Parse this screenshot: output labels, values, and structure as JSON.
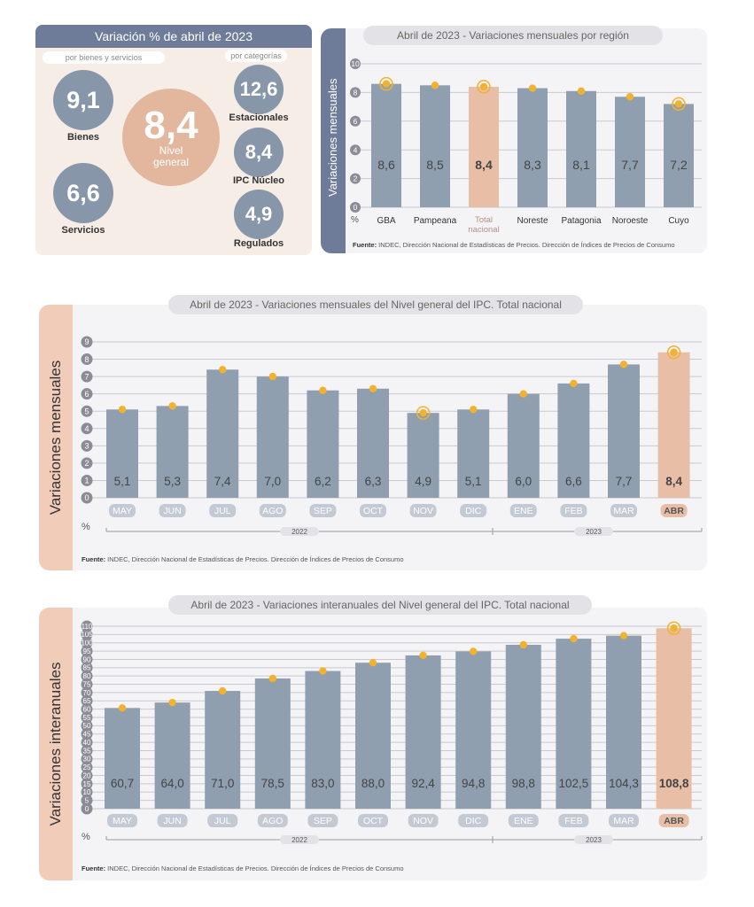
{
  "summary": {
    "title": "Variación % de abril de 2023",
    "left_pill": "por bienes y servicios",
    "right_pill": "por categorías",
    "bienes": {
      "value": "9,1",
      "label": "Bienes"
    },
    "servicios": {
      "value": "6,6",
      "label": "Servicios"
    },
    "nivel_general": {
      "value": "8,4",
      "label_line1": "Nivel",
      "label_line2": "general"
    },
    "estacionales": {
      "value": "12,6",
      "label": "Estacionales"
    },
    "ipc_nucleo": {
      "value": "8,4",
      "label": "IPC Núcleo"
    },
    "regulados": {
      "value": "4,9",
      "label": "Regulados"
    }
  },
  "region_panel": {
    "title_date": "Abril de 2023",
    "title_rest": " - Variaciones mensuales por región",
    "ylabel": "Variaciones mensuales",
    "unit": "%",
    "source_bold": "Fuente:",
    "source_text": " INDEC, Dirección Nacional de Estadísticas de Precios. Dirección de Índices de Precios de Consumo"
  },
  "monthly_panel": {
    "title_date": "Abril de 2023",
    "title_rest": " - Variaciones mensuales del Nivel general del IPC. Total nacional",
    "ylabel": "Variaciones mensuales",
    "unit": "%",
    "year1": "2022",
    "year2": "2023",
    "source_bold": "Fuente:",
    "source_text": " INDEC, Dirección Nacional de Estadísticas de Precios. Dirección de Índices de Precios de Consumo"
  },
  "annual_panel": {
    "title_date": "Abril de 2023",
    "title_rest": " - Variaciones interanuales del Nivel general del IPC. Total nacional",
    "ylabel": "Variaciones interanuales",
    "unit": "%",
    "year1": "2022",
    "year2": "2023",
    "source_bold": "Fuente:",
    "source_text": " INDEC, Dirección Nacional de Estadísticas de Precios. Dirección de Índices de Precios de Consumo"
  },
  "colors": {
    "bar": "#8f9fb0",
    "highlight_bar": "#e8bfa6",
    "dot": "#f1b22e",
    "accent_tab": "#f1ccb9",
    "region_tab": "#6e7c99"
  },
  "chart_data": [
    {
      "type": "bar",
      "title": "Abril de 2023 - Variaciones mensuales por región",
      "ylabel": "Variaciones mensuales",
      "unit": "%",
      "categories": [
        "GBA",
        "Pampeana",
        "Total nacional",
        "Noreste",
        "Patagonia",
        "Noroeste",
        "Cuyo"
      ],
      "values": [
        8.6,
        8.5,
        8.4,
        8.3,
        8.1,
        7.7,
        7.2
      ],
      "value_labels": [
        "8,6",
        "8,5",
        "8,4",
        "8,3",
        "8,1",
        "7,7",
        "7,2"
      ],
      "highlight_index": 2,
      "ylim": [
        0,
        10
      ],
      "yticks": [
        0,
        2,
        4,
        6,
        8,
        10
      ],
      "grid": true
    },
    {
      "type": "bar",
      "title": "Abril de 2023 - Variaciones mensuales del Nivel general del IPC. Total nacional",
      "ylabel": "Variaciones mensuales",
      "unit": "%",
      "categories": [
        "MAY",
        "JUN",
        "JUL",
        "AGO",
        "SEP",
        "OCT",
        "NOV",
        "DIC",
        "ENE",
        "FEB",
        "MAR",
        "ABR"
      ],
      "values": [
        5.1,
        5.3,
        7.4,
        7.0,
        6.2,
        6.3,
        4.9,
        5.1,
        6.0,
        6.6,
        7.7,
        8.4
      ],
      "value_labels": [
        "5,1",
        "5,3",
        "7,4",
        "7,0",
        "6,2",
        "6,3",
        "4,9",
        "5,1",
        "6,0",
        "6,6",
        "7,7",
        "8,4"
      ],
      "highlight_index": 11,
      "ylim": [
        0,
        9
      ],
      "yticks": [
        0,
        1,
        2,
        3,
        4,
        5,
        6,
        7,
        8,
        9
      ],
      "grid": true
    },
    {
      "type": "bar",
      "title": "Abril de 2023 - Variaciones interanuales del Nivel general del IPC. Total nacional",
      "ylabel": "Variaciones interanuales",
      "unit": "%",
      "categories": [
        "MAY",
        "JUN",
        "JUL",
        "AGO",
        "SEP",
        "OCT",
        "NOV",
        "DIC",
        "ENE",
        "FEB",
        "MAR",
        "ABR"
      ],
      "values": [
        60.7,
        64.0,
        71.0,
        78.5,
        83.0,
        88.0,
        92.4,
        94.8,
        98.8,
        102.5,
        104.3,
        108.8
      ],
      "value_labels": [
        "60,7",
        "64,0",
        "71,0",
        "78,5",
        "83,0",
        "88,0",
        "92,4",
        "94,8",
        "98,8",
        "102,5",
        "104,3",
        "108,8"
      ],
      "highlight_index": 11,
      "ylim": [
        0,
        110
      ],
      "yticks": [
        0,
        5,
        10,
        15,
        20,
        25,
        30,
        35,
        40,
        45,
        50,
        55,
        60,
        65,
        70,
        75,
        80,
        85,
        90,
        95,
        100,
        105,
        110
      ],
      "grid": true
    }
  ]
}
